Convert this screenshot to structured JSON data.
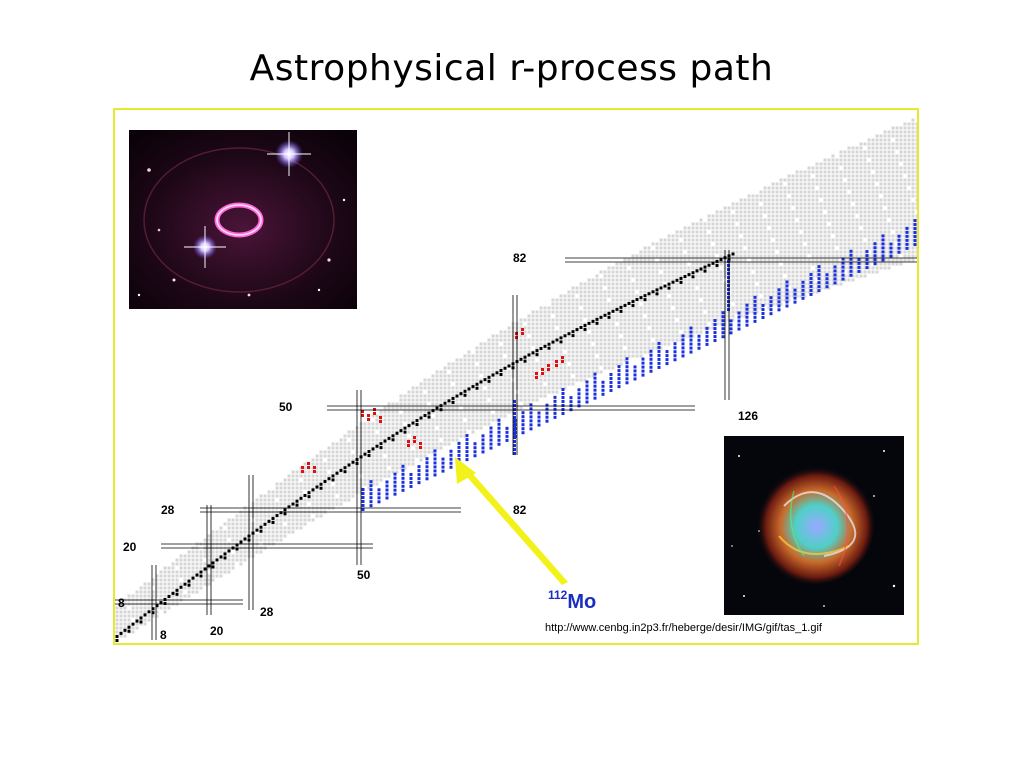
{
  "title": "Astrophysical r-process path",
  "magic_numbers": {
    "protons": [
      "8",
      "20",
      "28",
      "50",
      "82"
    ],
    "neutrons": [
      "8",
      "20",
      "28",
      "50",
      "82",
      "126"
    ]
  },
  "highlight": {
    "mass_number": "112",
    "element": "Mo"
  },
  "source_url": "http://www.cenbg.in2p3.fr/heberge/desir/IMG/gif/tas_1.gif",
  "images": {
    "top_left": "supernova photo with ring nebula and two bright stars",
    "bottom_right": "colorful supernova remnant photo"
  },
  "colors": {
    "frame": "#e8e830",
    "known_nuclei": "#d6d6d6",
    "stable_nuclei": "#000000",
    "measured_nuclei": "#e01010",
    "r_process_path": "#1a2fdd",
    "arrow": "#f2f21a",
    "highlight_text": "#1a2fbf"
  }
}
